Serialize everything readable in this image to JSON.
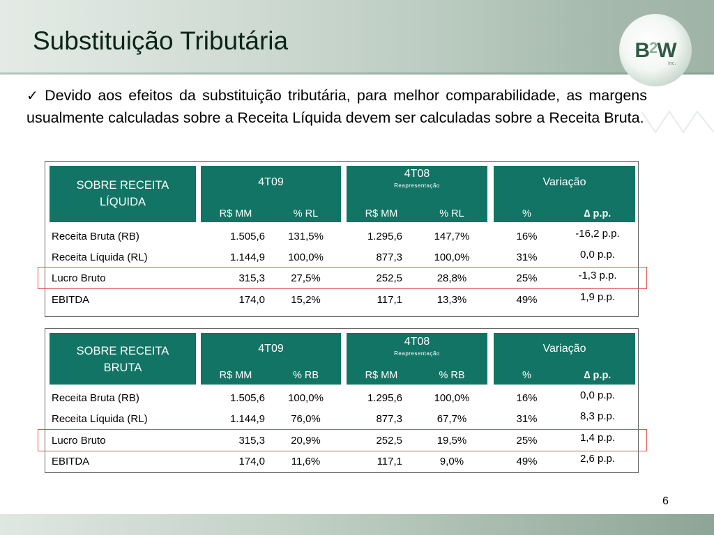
{
  "slide": {
    "title": "Substituição Tributária",
    "bullet_symbol": "✓",
    "bullet_text": "Devido aos efeitos da substituição tributária, para melhor comparabilidade, as margens usualmente calculadas sobre a Receita Líquida devem ser calculadas sobre a Receita Bruta.",
    "page_number": "6"
  },
  "logo": {
    "part1": "B",
    "part2": "2",
    "part3": "W",
    "inc": "Inc."
  },
  "colors": {
    "header": "#127464",
    "highlight": "#e05050",
    "title": "#0b2418"
  },
  "tables": [
    {
      "title": "SOBRE RECEITA LÍQUIDA",
      "p1": {
        "label": "4T09",
        "sub": ""
      },
      "p2": {
        "label": "4T08",
        "sub": "Reapresentação"
      },
      "p3": {
        "label": "Variação",
        "sub": ""
      },
      "cols": [
        "R$ MM",
        "% RL",
        "R$ MM",
        "% RL",
        "%",
        "∆ p.p."
      ],
      "rows": [
        {
          "label": "Receita Bruta (RB)",
          "v": [
            "1.505,6",
            "131,5%",
            "1.295,6",
            "147,7%",
            "16%",
            "-16,2 p.p."
          ]
        },
        {
          "label": "Receita Líquida (RL)",
          "v": [
            "1.144,9",
            "100,0%",
            "877,3",
            "100,0%",
            "31%",
            "0,0 p.p."
          ]
        },
        {
          "label": "Lucro Bruto",
          "v": [
            "315,3",
            "27,5%",
            "252,5",
            "28,8%",
            "25%",
            "-1,3 p.p."
          ]
        },
        {
          "label": "EBITDA",
          "v": [
            "174,0",
            "15,2%",
            "117,1",
            "13,3%",
            "49%",
            "1,9 p.p."
          ]
        }
      ]
    },
    {
      "title": "SOBRE RECEITA BRUTA",
      "p1": {
        "label": "4T09",
        "sub": ""
      },
      "p2": {
        "label": "4T08",
        "sub": "Reapresentação"
      },
      "p3": {
        "label": "Variação",
        "sub": ""
      },
      "cols": [
        "R$ MM",
        "% RB",
        "R$ MM",
        "% RB",
        "%",
        "∆ p.p."
      ],
      "rows": [
        {
          "label": "Receita Bruta (RB)",
          "v": [
            "1.505,6",
            "100,0%",
            "1.295,6",
            "100,0%",
            "16%",
            "0,0 p.p."
          ]
        },
        {
          "label": "Receita Líquida (RL)",
          "v": [
            "1.144,9",
            "76,0%",
            "877,3",
            "67,7%",
            "31%",
            "8,3 p.p."
          ]
        },
        {
          "label": "Lucro Bruto",
          "v": [
            "315,3",
            "20,9%",
            "252,5",
            "19,5%",
            "25%",
            "1,4 p.p."
          ]
        },
        {
          "label": "EBITDA",
          "v": [
            "174,0",
            "11,6%",
            "117,1",
            "9,0%",
            "49%",
            "2,6 p.p."
          ]
        }
      ]
    }
  ]
}
